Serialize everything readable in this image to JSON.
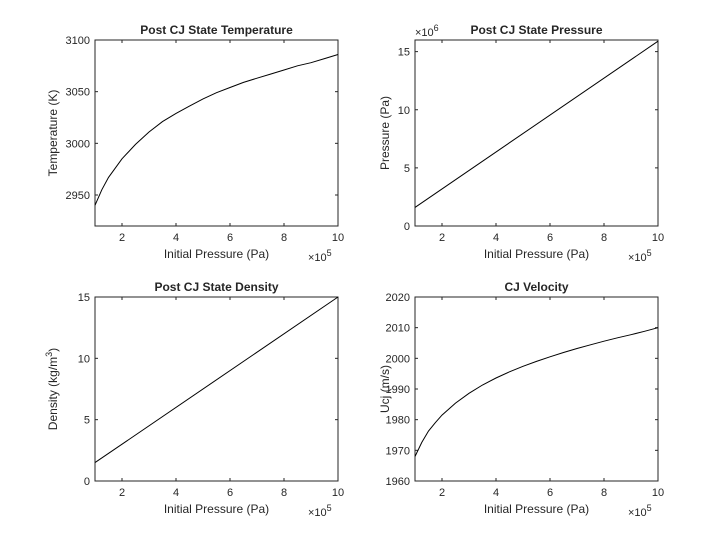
{
  "chart_data": [
    {
      "type": "line",
      "title": "Post CJ State Temperature",
      "xlabel": "Initial Pressure (Pa)",
      "ylabel": "Temperature (K)",
      "xlim": [
        1,
        10
      ],
      "ylim": [
        2920,
        3100
      ],
      "x_exponent": "5",
      "y_exponent": "",
      "xticks": [
        "2",
        "4",
        "6",
        "8",
        "10"
      ],
      "yticks": [
        "2950",
        "3000",
        "3050",
        "3100"
      ],
      "grid": false,
      "series": [
        {
          "x": [
            1.0,
            1.25,
            1.5,
            1.75,
            2.0,
            2.5,
            3.0,
            3.5,
            4.0,
            4.5,
            5.0,
            5.5,
            6.0,
            6.5,
            7.0,
            7.5,
            8.0,
            8.5,
            9.0,
            9.5,
            10.0
          ],
          "values": [
            2940,
            2955,
            2967,
            2976,
            2985,
            2999,
            3011,
            3021,
            3029,
            3036,
            3043,
            3049,
            3054,
            3059,
            3063,
            3067,
            3071,
            3075,
            3078,
            3082,
            3086
          ]
        }
      ]
    },
    {
      "type": "line",
      "title": "Post CJ State Pressure",
      "xlabel": "Initial Pressure (Pa)",
      "ylabel": "Pressure (Pa)",
      "xlim": [
        1,
        10
      ],
      "ylim": [
        0,
        16
      ],
      "x_exponent": "5",
      "y_exponent": "6",
      "xticks": [
        "2",
        "4",
        "6",
        "8",
        "10"
      ],
      "yticks": [
        "0",
        "5",
        "10",
        "15"
      ],
      "grid": false,
      "series": [
        {
          "x": [
            1,
            10
          ],
          "values": [
            1.6,
            15.9
          ]
        }
      ]
    },
    {
      "type": "line",
      "title": "Post CJ State Density",
      "xlabel": "Initial Pressure (Pa)",
      "ylabel": "Density (kg/m3)",
      "xlim": [
        1,
        10
      ],
      "ylim": [
        0,
        15
      ],
      "x_exponent": "5",
      "y_exponent": "",
      "xticks": [
        "2",
        "4",
        "6",
        "8",
        "10"
      ],
      "yticks": [
        "0",
        "5",
        "10",
        "15"
      ],
      "grid": false,
      "series": [
        {
          "x": [
            1,
            10
          ],
          "values": [
            1.5,
            15.0
          ]
        }
      ]
    },
    {
      "type": "line",
      "title": "CJ Velocity",
      "xlabel": "Initial Pressure (Pa)",
      "ylabel": "Ucj (m/s)",
      "xlim": [
        1,
        10
      ],
      "ylim": [
        1960,
        2020
      ],
      "x_exponent": "5",
      "y_exponent": "",
      "xticks": [
        "2",
        "4",
        "6",
        "8",
        "10"
      ],
      "yticks": [
        "1960",
        "1970",
        "1980",
        "1990",
        "2000",
        "2010",
        "2020"
      ],
      "grid": false,
      "series": [
        {
          "x": [
            1.0,
            1.25,
            1.5,
            1.75,
            2.0,
            2.5,
            3.0,
            3.5,
            4.0,
            4.5,
            5.0,
            5.5,
            6.0,
            6.5,
            7.0,
            7.5,
            8.0,
            8.5,
            9.0,
            9.5,
            10.0
          ],
          "values": [
            1968.0,
            1972.6,
            1976.3,
            1979.0,
            1981.5,
            1985.4,
            1988.6,
            1991.3,
            1993.6,
            1995.6,
            1997.4,
            1999.0,
            2000.5,
            2001.9,
            2003.2,
            2004.4,
            2005.6,
            2006.7,
            2007.7,
            2008.8,
            2010.0
          ]
        }
      ]
    }
  ]
}
